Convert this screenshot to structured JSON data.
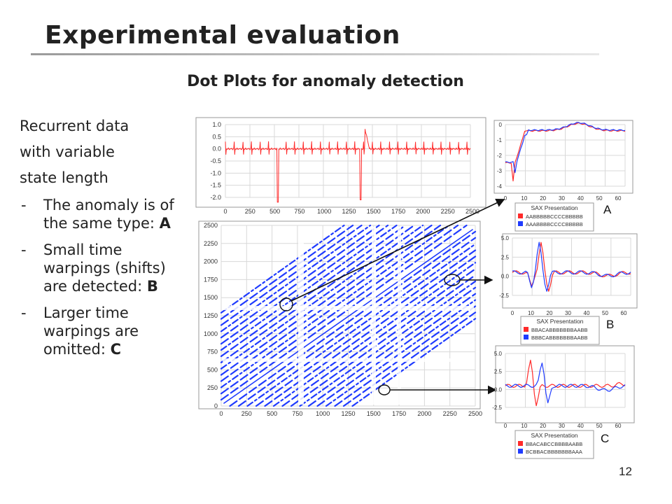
{
  "slide": {
    "title": "Experimental evaluation",
    "subtitle": "Dot Plots for anomaly detection",
    "intro_lines": [
      "Recurrent data",
      "with variable",
      "state length"
    ],
    "bullets": [
      {
        "text": "The anomaly is of the same type: ",
        "tag": "A"
      },
      {
        "text": "Small time warpings (shifts) are detected: ",
        "tag": "B"
      },
      {
        "text": "Larger time warpings are omitted: ",
        "tag": "C"
      }
    ],
    "page_number": "12"
  },
  "figures": {
    "signal": {
      "y_ticks": [
        "1.0",
        "0.5",
        "0.0",
        "-0.5",
        "-1.0",
        "-1.5",
        "-2.0"
      ],
      "x_ticks": [
        "0",
        "250",
        "500",
        "750",
        "1000",
        "1250",
        "1500",
        "1750",
        "2000",
        "2250",
        "2500"
      ]
    },
    "dotplot": {
      "y_ticks": [
        "2500",
        "2250",
        "2000",
        "1750",
        "1500",
        "1250",
        "1000",
        "750",
        "500",
        "250",
        "0"
      ],
      "x_ticks": [
        "0",
        "250",
        "500",
        "750",
        "1000",
        "1250",
        "1500",
        "1750",
        "2000",
        "2250",
        "2500"
      ]
    },
    "panels": [
      {
        "label": "A",
        "y_ticks": [
          "0",
          "-1",
          "-2",
          "-3",
          "-4"
        ],
        "x_ticks": [
          "0",
          "10",
          "20",
          "30",
          "40",
          "50",
          "60"
        ],
        "legend_title": "SAX Presentation",
        "legend": [
          {
            "text": "AABBBBBCCCCBBBBB",
            "color": "#ff2a2a"
          },
          {
            "text": "AAABBBBCCCCBBBBB",
            "color": "#1f3bff"
          }
        ]
      },
      {
        "label": "B",
        "y_ticks": [
          "5.0",
          "2.5",
          "0.0",
          "-2.5"
        ],
        "x_ticks": [
          "0",
          "10",
          "20",
          "30",
          "40",
          "50",
          "60"
        ],
        "legend_title": "SAX Presentation",
        "legend": [
          {
            "text": "BBACABBBBBBBAABB",
            "color": "#ff2a2a"
          },
          {
            "text": "BBBCABBBBBBBAABB",
            "color": "#1f3bff"
          }
        ]
      },
      {
        "label": "C",
        "y_ticks": [
          "5.0",
          "2.5",
          "0.0",
          "-2.5"
        ],
        "x_ticks": [
          "0",
          "10",
          "20",
          "30",
          "40",
          "50",
          "60"
        ],
        "legend_title": "SAX Presentation",
        "legend": [
          {
            "text": "BBACABCCBBBBAABB",
            "color": "#ff2a2a"
          },
          {
            "text": "BCBBACBBBBBBBAAA",
            "color": "#1f3bff"
          }
        ]
      }
    ]
  },
  "colors": {
    "red_series": "#ff2a2a",
    "blue_series": "#1f3bff",
    "grid": "#d8d8d8"
  }
}
